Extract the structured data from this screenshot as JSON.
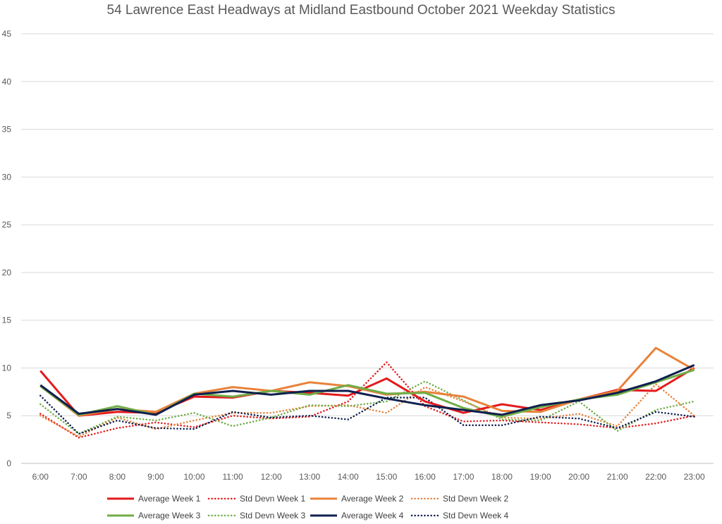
{
  "chart_data": {
    "type": "line",
    "title": "54 Lawrence East Headways at Midland Eastbound October 2021 Weekday Statistics",
    "xlabel": "",
    "ylabel": "",
    "ylim": [
      0,
      45
    ],
    "yticks": [
      0,
      5,
      10,
      15,
      20,
      25,
      30,
      35,
      40,
      45
    ],
    "grid": true,
    "legend_position": "bottom",
    "categories": [
      "6:00",
      "7:00",
      "8:00",
      "9:00",
      "10:00",
      "11:00",
      "12:00",
      "13:00",
      "14:00",
      "15:00",
      "16:00",
      "17:00",
      "18:00",
      "19:00",
      "20:00",
      "21:00",
      "22:00",
      "23:00"
    ],
    "series": [
      {
        "name": "Average Week 1",
        "color": "#e31a1c",
        "style": "solid",
        "values": [
          9.7,
          5.0,
          5.4,
          5.3,
          7.0,
          6.9,
          7.6,
          7.4,
          7.1,
          8.9,
          6.5,
          5.3,
          6.2,
          5.6,
          6.7,
          7.7,
          7.6,
          10.0
        ]
      },
      {
        "name": "Std Devn Week 1",
        "color": "#e31a1c",
        "style": "dotted",
        "values": [
          5.2,
          2.7,
          3.7,
          4.3,
          3.8,
          5.0,
          4.7,
          4.9,
          6.5,
          10.6,
          6.0,
          4.4,
          4.5,
          4.3,
          4.1,
          3.7,
          4.2,
          5.0
        ]
      },
      {
        "name": "Average Week 2",
        "color": "#e8823a",
        "style": "solid",
        "values": [
          8.1,
          5.0,
          5.7,
          5.4,
          7.3,
          8.0,
          7.6,
          8.5,
          8.1,
          7.2,
          7.5,
          7.0,
          5.5,
          5.4,
          6.7,
          7.6,
          12.1,
          9.8
        ]
      },
      {
        "name": "Std Devn Week 2",
        "color": "#e8823a",
        "style": "dotted",
        "values": [
          5.0,
          2.8,
          4.8,
          3.6,
          4.5,
          5.3,
          5.3,
          6.0,
          6.1,
          5.3,
          8.0,
          6.5,
          4.8,
          4.7,
          5.2,
          3.9,
          8.3,
          5.0
        ]
      },
      {
        "name": "Average Week 3",
        "color": "#70ad47",
        "style": "solid",
        "values": [
          8.1,
          5.1,
          6.0,
          5.1,
          7.3,
          7.0,
          7.6,
          7.2,
          8.2,
          7.3,
          7.4,
          5.8,
          4.9,
          5.9,
          6.7,
          7.2,
          8.5,
          9.8
        ]
      },
      {
        "name": "Std Devn Week 3",
        "color": "#70ad47",
        "style": "dotted",
        "values": [
          6.2,
          3.1,
          4.9,
          4.5,
          5.3,
          3.9,
          4.8,
          6.1,
          6.0,
          6.5,
          8.6,
          6.6,
          4.6,
          4.5,
          6.5,
          3.4,
          5.6,
          6.5
        ]
      },
      {
        "name": "Average Week 4",
        "color": "#0f1f4f",
        "style": "solid",
        "values": [
          8.2,
          5.2,
          5.7,
          5.1,
          7.2,
          7.6,
          7.2,
          7.6,
          7.6,
          6.8,
          6.1,
          5.6,
          5.1,
          6.1,
          6.6,
          7.4,
          8.6,
          10.3
        ]
      },
      {
        "name": "Std Devn Week 4",
        "color": "#0f1f4f",
        "style": "dotted",
        "values": [
          7.1,
          3.1,
          4.5,
          3.7,
          3.6,
          5.4,
          4.8,
          5.0,
          4.6,
          6.9,
          6.9,
          4.0,
          4.0,
          4.9,
          4.7,
          3.7,
          5.4,
          4.9
        ]
      }
    ]
  }
}
